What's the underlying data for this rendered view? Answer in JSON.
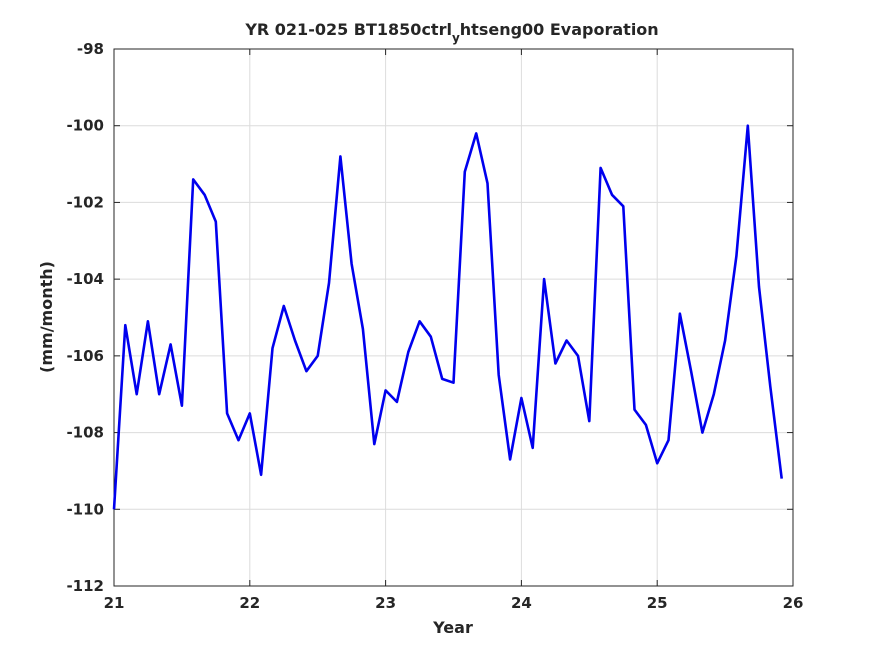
{
  "chart_data": {
    "type": "line",
    "title": {
      "before_sub": "YR 021-025 BT1850ctrl",
      "subscript": "y",
      "after_sub": "htseng00 Evaporation"
    },
    "xlabel": "Year",
    "ylabel": "(mm/month)",
    "xlim": [
      21,
      26
    ],
    "ylim": [
      -112,
      -98
    ],
    "xticks": [
      21,
      22,
      23,
      24,
      25,
      26
    ],
    "yticks": [
      -112,
      -110,
      -108,
      -106,
      -104,
      -102,
      -100,
      -98
    ],
    "grid": true,
    "series": [
      {
        "color": "#0000ee",
        "x": [
          21.0,
          21.083,
          21.167,
          21.25,
          21.333,
          21.417,
          21.5,
          21.583,
          21.667,
          21.75,
          21.833,
          21.917,
          22.0,
          22.083,
          22.167,
          22.25,
          22.333,
          22.417,
          22.5,
          22.583,
          22.667,
          22.75,
          22.833,
          22.917,
          23.0,
          23.083,
          23.167,
          23.25,
          23.333,
          23.417,
          23.5,
          23.583,
          23.667,
          23.75,
          23.833,
          23.917,
          24.0,
          24.083,
          24.167,
          24.25,
          24.333,
          24.417,
          24.5,
          24.583,
          24.667,
          24.75,
          24.833,
          24.917,
          25.0,
          25.083,
          25.167,
          25.25,
          25.333,
          25.417,
          25.5,
          25.583,
          25.667,
          25.75,
          25.833,
          25.917
        ],
        "y": [
          -110.0,
          -105.2,
          -107.0,
          -105.1,
          -107.0,
          -105.7,
          -107.3,
          -101.4,
          -101.8,
          -102.5,
          -107.5,
          -108.2,
          -107.5,
          -109.1,
          -105.8,
          -104.7,
          -105.6,
          -106.4,
          -106.0,
          -104.1,
          -100.8,
          -103.6,
          -105.3,
          -108.3,
          -106.9,
          -107.2,
          -105.9,
          -105.1,
          -105.5,
          -106.6,
          -106.7,
          -101.2,
          -100.2,
          -101.5,
          -106.5,
          -108.7,
          -107.1,
          -108.4,
          -104.0,
          -106.2,
          -105.6,
          -106.0,
          -107.7,
          -101.1,
          -101.8,
          -102.1,
          -107.4,
          -107.8,
          -108.8,
          -108.2,
          -104.9,
          -106.4,
          -108.0,
          -107.0,
          -105.6,
          -103.4,
          -100.0,
          -104.2,
          -106.8,
          -109.2
        ]
      }
    ]
  }
}
